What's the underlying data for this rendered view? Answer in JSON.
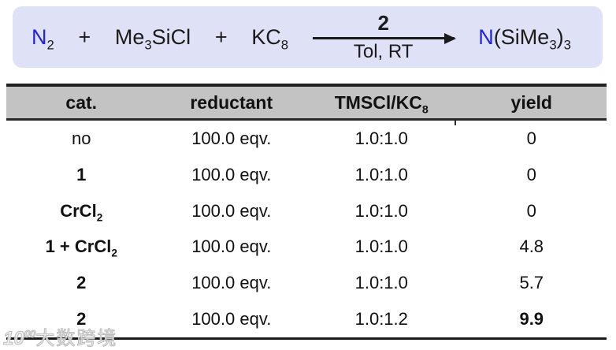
{
  "reaction": {
    "n2": {
      "main": "N",
      "sub": "2"
    },
    "plus1": "+",
    "me3sicl": {
      "a": "Me",
      "sub": "3",
      "b": "SiCl"
    },
    "plus2": "+",
    "kc8": {
      "a": "KC",
      "sub": "8"
    },
    "arrow": {
      "above": "2",
      "below": "Tol, RT"
    },
    "product": {
      "n": "N",
      "p1": "(SiMe",
      "s1": "3",
      "p2": ")",
      "s2": "3"
    }
  },
  "table": {
    "headers": {
      "cat": "cat.",
      "reductant": "reductant",
      "ratio_a": "TMSCl/KC",
      "ratio_sub": "8",
      "yield": "yield"
    },
    "rows": [
      {
        "cat": [
          {
            "t": "no"
          }
        ],
        "cat_bold": false,
        "reductant": "100.0 eqv.",
        "ratio": "1.0:1.0",
        "yield": "0",
        "yield_bold": false
      },
      {
        "cat": [
          {
            "t": "1"
          }
        ],
        "cat_bold": true,
        "reductant": "100.0 eqv.",
        "ratio": "1.0:1.0",
        "yield": "0",
        "yield_bold": false
      },
      {
        "cat": [
          {
            "t": "CrCl"
          },
          {
            "t": "2",
            "sub": true
          }
        ],
        "cat_bold": true,
        "reductant": "100.0 eqv.",
        "ratio": "1.0:1.0",
        "yield": "0",
        "yield_bold": false
      },
      {
        "cat": [
          {
            "t": "1 + CrCl"
          },
          {
            "t": "2",
            "sub": true
          }
        ],
        "cat_bold": true,
        "reductant": "100.0 eqv.",
        "ratio": "1.0:1.0",
        "yield": "4.8",
        "yield_bold": false
      },
      {
        "cat": [
          {
            "t": "2"
          }
        ],
        "cat_bold": true,
        "reductant": "100.0 eqv.",
        "ratio": "1.0:1.0",
        "yield": "5.7",
        "yield_bold": false
      },
      {
        "cat": [
          {
            "t": "2"
          }
        ],
        "cat_bold": true,
        "reductant": "100.0 eqv.",
        "ratio": "1.0:1.2",
        "yield": "9.9",
        "yield_bold": true
      }
    ]
  },
  "watermark": {
    "logo": "10",
    "logo_sup": "00",
    "text": "大数跨境"
  },
  "colors": {
    "accent_blue": "#2222dd",
    "scheme_box_bg": "#dfe1f7",
    "header_bg": "#c3c3c3",
    "line": "#1a1a1a"
  },
  "chart_data": {
    "type": "table",
    "title": "N2 + Me3SiCl + KC8 -> N(SiMe3)3, cat. 2, Tol, RT",
    "columns": [
      "cat.",
      "reductant",
      "TMSCl/KC8",
      "yield"
    ],
    "rows": [
      [
        "no",
        "100.0 eqv.",
        "1.0:1.0",
        0
      ],
      [
        "1",
        "100.0 eqv.",
        "1.0:1.0",
        0
      ],
      [
        "CrCl2",
        "100.0 eqv.",
        "1.0:1.0",
        0
      ],
      [
        "1 + CrCl2",
        "100.0 eqv.",
        "1.0:1.0",
        4.8
      ],
      [
        "2",
        "100.0 eqv.",
        "1.0:1.0",
        5.7
      ],
      [
        "2",
        "100.0 eqv.",
        "1.0:1.2",
        9.9
      ]
    ]
  }
}
